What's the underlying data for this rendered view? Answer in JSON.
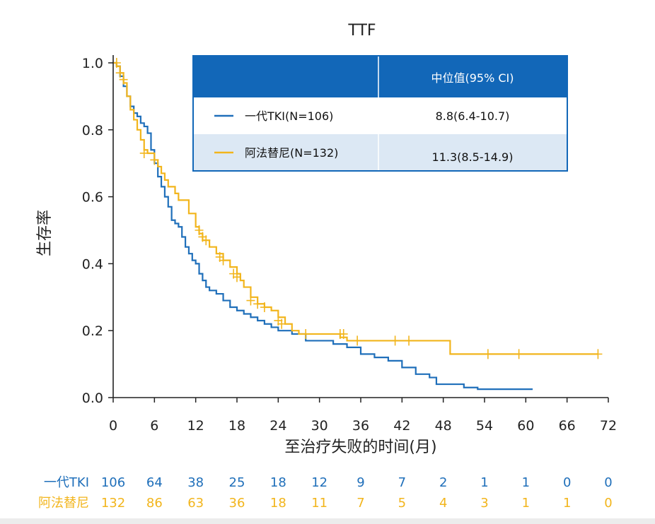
{
  "colors": {
    "first_gen": "#1f6fba",
    "aumolertinib": "#f2b51c",
    "legend_header": "#1267b8",
    "legend_row_alt": "#dce8f4"
  },
  "chart_data": {
    "type": "line",
    "title": "TTF",
    "xlabel": "至治疗失败的时间(月)",
    "ylabel": "生存率",
    "xlim": [
      0,
      72
    ],
    "ylim": [
      0,
      1.0
    ],
    "x_ticks": [
      0,
      6,
      12,
      18,
      24,
      30,
      36,
      42,
      48,
      54,
      60,
      66,
      72
    ],
    "y_ticks": [
      "0.0",
      "0.2",
      "0.4",
      "0.6",
      "0.8",
      "1.0"
    ],
    "legend": {
      "header": "中位值(95% CI)",
      "rows": [
        {
          "label": "一代TKI(N=106)",
          "median": "8.8(6.4-10.7)"
        },
        {
          "label": "阿法替尼(N=132)",
          "median": "11.3(8.5-14.9)"
        }
      ]
    },
    "series": [
      {
        "name": "一代TKI",
        "points": [
          [
            0,
            1.0
          ],
          [
            0.5,
            0.99
          ],
          [
            1,
            0.96
          ],
          [
            1.5,
            0.93
          ],
          [
            2,
            0.9
          ],
          [
            2.5,
            0.87
          ],
          [
            3,
            0.85
          ],
          [
            3.5,
            0.84
          ],
          [
            4,
            0.82
          ],
          [
            4.5,
            0.81
          ],
          [
            5,
            0.79
          ],
          [
            5.5,
            0.74
          ],
          [
            6,
            0.7
          ],
          [
            6.5,
            0.66
          ],
          [
            7,
            0.63
          ],
          [
            7.5,
            0.6
          ],
          [
            8,
            0.57
          ],
          [
            8.5,
            0.53
          ],
          [
            9,
            0.52
          ],
          [
            9.5,
            0.51
          ],
          [
            10,
            0.48
          ],
          [
            10.5,
            0.45
          ],
          [
            11,
            0.43
          ],
          [
            11.5,
            0.41
          ],
          [
            12,
            0.4
          ],
          [
            12.5,
            0.37
          ],
          [
            13,
            0.35
          ],
          [
            13.5,
            0.33
          ],
          [
            14,
            0.32
          ],
          [
            15,
            0.31
          ],
          [
            16,
            0.29
          ],
          [
            17,
            0.27
          ],
          [
            18,
            0.26
          ],
          [
            19,
            0.25
          ],
          [
            20,
            0.24
          ],
          [
            21,
            0.23
          ],
          [
            22,
            0.22
          ],
          [
            23,
            0.21
          ],
          [
            24,
            0.2
          ],
          [
            26,
            0.19
          ],
          [
            28,
            0.17
          ],
          [
            30,
            0.17
          ],
          [
            32,
            0.16
          ],
          [
            34,
            0.15
          ],
          [
            36,
            0.13
          ],
          [
            38,
            0.12
          ],
          [
            40,
            0.11
          ],
          [
            42,
            0.09
          ],
          [
            44,
            0.07
          ],
          [
            46,
            0.06
          ],
          [
            47,
            0.04
          ],
          [
            51,
            0.03
          ],
          [
            53,
            0.025
          ],
          [
            61,
            0.025
          ]
        ],
        "censored": []
      },
      {
        "name": "阿法替尼",
        "points": [
          [
            0,
            1.0
          ],
          [
            0.5,
            0.99
          ],
          [
            1,
            0.97
          ],
          [
            1.5,
            0.94
          ],
          [
            2,
            0.9
          ],
          [
            2.5,
            0.86
          ],
          [
            3,
            0.83
          ],
          [
            3.5,
            0.8
          ],
          [
            4,
            0.77
          ],
          [
            4.5,
            0.74
          ],
          [
            5,
            0.73
          ],
          [
            6,
            0.71
          ],
          [
            6.5,
            0.69
          ],
          [
            7,
            0.67
          ],
          [
            7.5,
            0.65
          ],
          [
            8,
            0.63
          ],
          [
            9,
            0.61
          ],
          [
            9.5,
            0.59
          ],
          [
            11,
            0.55
          ],
          [
            12,
            0.51
          ],
          [
            12.5,
            0.49
          ],
          [
            13,
            0.47
          ],
          [
            14,
            0.45
          ],
          [
            15,
            0.43
          ],
          [
            16,
            0.41
          ],
          [
            17,
            0.39
          ],
          [
            18,
            0.37
          ],
          [
            18.5,
            0.35
          ],
          [
            19,
            0.33
          ],
          [
            20,
            0.3
          ],
          [
            21,
            0.28
          ],
          [
            22,
            0.27
          ],
          [
            23,
            0.26
          ],
          [
            24,
            0.24
          ],
          [
            25,
            0.22
          ],
          [
            26,
            0.2
          ],
          [
            27,
            0.19
          ],
          [
            33,
            0.18
          ],
          [
            34,
            0.17
          ],
          [
            49,
            0.13
          ],
          [
            70.5,
            0.13
          ]
        ],
        "censored": [
          [
            0.5,
            1.0
          ],
          [
            1,
            0.97
          ],
          [
            1.5,
            0.95
          ],
          [
            4.5,
            0.73
          ],
          [
            6,
            0.71
          ],
          [
            12.5,
            0.5
          ],
          [
            13,
            0.48
          ],
          [
            13.5,
            0.47
          ],
          [
            15.5,
            0.42
          ],
          [
            16,
            0.41
          ],
          [
            17.5,
            0.37
          ],
          [
            18,
            0.36
          ],
          [
            20,
            0.29
          ],
          [
            21,
            0.28
          ],
          [
            22,
            0.27
          ],
          [
            24,
            0.23
          ],
          [
            24.5,
            0.22
          ],
          [
            28,
            0.19
          ],
          [
            33,
            0.19
          ],
          [
            33.5,
            0.19
          ],
          [
            35.5,
            0.17
          ],
          [
            41,
            0.17
          ],
          [
            43,
            0.17
          ],
          [
            54.5,
            0.13
          ],
          [
            59,
            0.13
          ],
          [
            70.5,
            0.13
          ]
        ]
      }
    ]
  },
  "risk_table": {
    "rows": [
      {
        "label": "一代TKI",
        "values": [
          "106",
          "64",
          "38",
          "25",
          "18",
          "12",
          "9",
          "7",
          "2",
          "1",
          "1",
          "0",
          "0"
        ]
      },
      {
        "label": "阿法替尼",
        "values": [
          "132",
          "86",
          "63",
          "36",
          "18",
          "11",
          "7",
          "5",
          "4",
          "3",
          "1",
          "1",
          "0"
        ]
      }
    ]
  }
}
